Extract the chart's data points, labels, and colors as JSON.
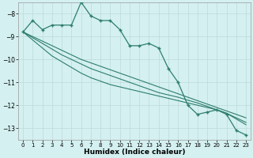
{
  "xlabel": "Humidex (Indice chaleur)",
  "x": [
    0,
    1,
    2,
    3,
    4,
    5,
    6,
    7,
    8,
    9,
    10,
    11,
    12,
    13,
    14,
    15,
    16,
    17,
    18,
    19,
    20,
    21,
    22,
    23
  ],
  "y_main": [
    -8.8,
    -8.3,
    -8.7,
    -8.5,
    -8.5,
    -8.5,
    -7.5,
    -8.1,
    -8.3,
    -8.3,
    -8.7,
    -9.4,
    -9.4,
    -9.3,
    -9.5,
    -10.4,
    -11.0,
    -12.0,
    -12.4,
    -12.3,
    -12.2,
    -12.4,
    -13.1,
    -13.3
  ],
  "y_line1": [
    -8.8,
    -9.0,
    -9.2,
    -9.4,
    -9.6,
    -9.8,
    -10.0,
    -10.15,
    -10.3,
    -10.45,
    -10.6,
    -10.75,
    -10.9,
    -11.05,
    -11.2,
    -11.35,
    -11.5,
    -11.65,
    -11.8,
    -11.95,
    -12.1,
    -12.25,
    -12.4,
    -12.55
  ],
  "y_line2": [
    -8.8,
    -9.05,
    -9.3,
    -9.55,
    -9.8,
    -10.0,
    -10.2,
    -10.4,
    -10.55,
    -10.7,
    -10.85,
    -11.0,
    -11.15,
    -11.3,
    -11.45,
    -11.55,
    -11.65,
    -11.78,
    -11.9,
    -12.05,
    -12.2,
    -12.35,
    -12.55,
    -12.75
  ],
  "y_line3": [
    -8.8,
    -9.15,
    -9.5,
    -9.85,
    -10.1,
    -10.35,
    -10.6,
    -10.8,
    -10.95,
    -11.1,
    -11.2,
    -11.3,
    -11.4,
    -11.5,
    -11.6,
    -11.7,
    -11.8,
    -11.9,
    -12.0,
    -12.1,
    -12.2,
    -12.35,
    -12.6,
    -12.85
  ],
  "line_color": "#2e7d6e",
  "bg_color": "#d4f0f0",
  "grid_color": "#c0dede",
  "ylim": [
    -13.5,
    -7.5
  ],
  "yticks": [
    -8,
    -9,
    -10,
    -11,
    -12,
    -13
  ],
  "xticks": [
    0,
    1,
    2,
    3,
    4,
    5,
    6,
    7,
    8,
    9,
    10,
    11,
    12,
    13,
    14,
    15,
    16,
    17,
    18,
    19,
    20,
    21,
    22,
    23
  ]
}
